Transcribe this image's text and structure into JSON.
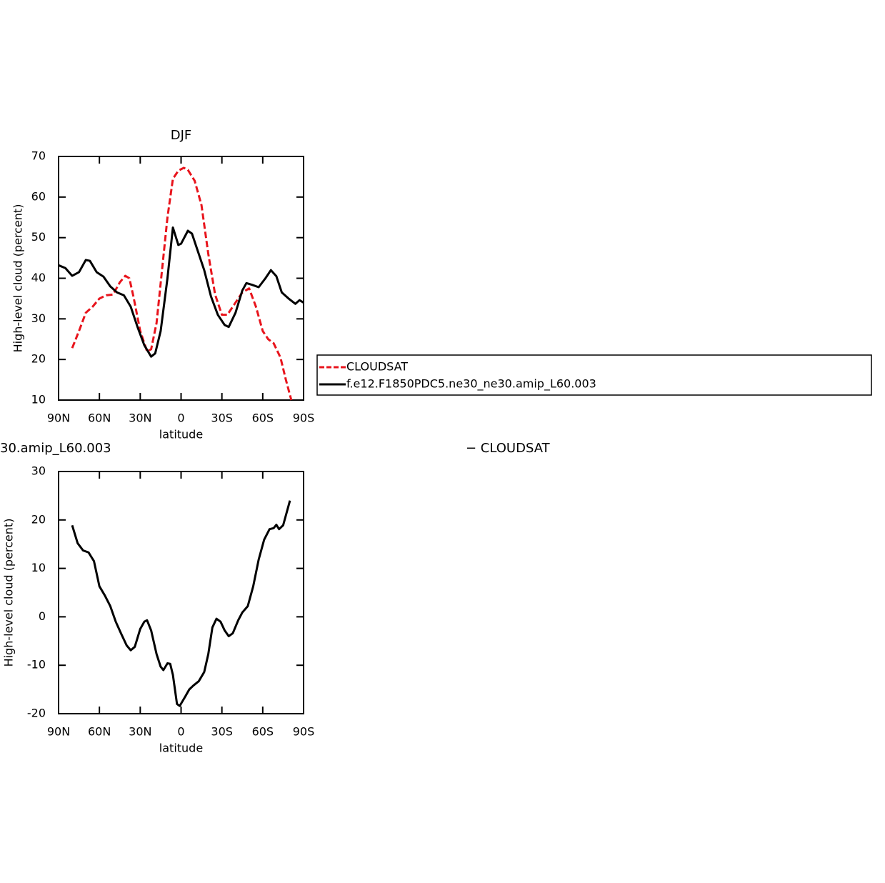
{
  "chart_data": [
    {
      "type": "line",
      "title": "DJF",
      "xlabel": "latitude",
      "ylabel": "High-level cloud (percent)",
      "xlim": [
        90,
        -90
      ],
      "xticks": [
        {
          "value": 90,
          "label": "90N"
        },
        {
          "value": 60,
          "label": "60N"
        },
        {
          "value": 30,
          "label": "30N"
        },
        0,
        {
          "value": -30,
          "label": "30S"
        },
        {
          "value": -60,
          "label": "60S"
        },
        {
          "value": -90,
          "label": "90S"
        }
      ],
      "ylim": [
        10,
        70
      ],
      "yticks": [
        10,
        20,
        30,
        40,
        50,
        60,
        70
      ],
      "legend": "right",
      "series": [
        {
          "name": "CLOUDSAT",
          "color": "#e8141c",
          "style": "dashed",
          "x": [
            80,
            75,
            70,
            65,
            60,
            55,
            50,
            45,
            41,
            38,
            35,
            30,
            25,
            22,
            18,
            14,
            10,
            6,
            2,
            -2,
            -5,
            -10,
            -15,
            -20,
            -25,
            -30,
            -34,
            -40,
            -45,
            -50,
            -55,
            -60,
            -64,
            -68,
            -73,
            -77,
            -81
          ],
          "values": [
            22.8,
            27,
            31.5,
            33,
            35,
            35.8,
            36,
            39,
            40.6,
            40,
            35.5,
            27,
            22,
            22.5,
            29,
            42,
            55,
            64.5,
            66.5,
            67.2,
            66.7,
            64,
            58,
            46,
            36,
            31,
            31,
            34,
            36.5,
            37.5,
            33,
            27,
            25,
            24,
            20.5,
            15,
            10
          ]
        },
        {
          "name": "f.e12.F1850PDC5.ne30_ne30.amip_L60.003",
          "color": "#000000",
          "style": "solid",
          "x": [
            90,
            85,
            80,
            75,
            70,
            67,
            62,
            57,
            52,
            47,
            42,
            37,
            32,
            27,
            22,
            19,
            15,
            10,
            6,
            2,
            0,
            -5,
            -8,
            -12,
            -17,
            -22,
            -27,
            -32,
            -35,
            -40,
            -45,
            -48,
            -52,
            -57,
            -62,
            -66,
            -70,
            -74,
            -79,
            -84,
            -87,
            -90
          ],
          "values": [
            43.2,
            42.5,
            40.6,
            41.5,
            44.5,
            44.3,
            41.5,
            40.4,
            38,
            36.5,
            35.8,
            33,
            28,
            23.5,
            20.7,
            21.5,
            27,
            40,
            52.5,
            48.2,
            48.5,
            51.7,
            51,
            47,
            42,
            35.5,
            31,
            28.5,
            28,
            31.5,
            37,
            38.8,
            38.4,
            37.8,
            40,
            42,
            40.5,
            36.5,
            35,
            33.7,
            34.6,
            34
          ]
        }
      ]
    },
    {
      "type": "line",
      "left_title": "30.amip_L60.003",
      "right_title": "− CLOUDSAT",
      "xlabel": "latitude",
      "ylabel": "High-level cloud (percent)",
      "xlim": [
        90,
        -90
      ],
      "xticks": [
        {
          "value": 90,
          "label": "90N"
        },
        {
          "value": 60,
          "label": "60N"
        },
        {
          "value": 30,
          "label": "30N"
        },
        0,
        {
          "value": -30,
          "label": "30S"
        },
        {
          "value": -60,
          "label": "60S"
        },
        {
          "value": -90,
          "label": "90S"
        }
      ],
      "ylim": [
        -20,
        30
      ],
      "yticks": [
        -20,
        -10,
        0,
        10,
        20,
        30
      ],
      "series": [
        {
          "color": "#000000",
          "style": "solid",
          "x": [
            80,
            76,
            72,
            68,
            64,
            60,
            56,
            52,
            48,
            44,
            40,
            37,
            34,
            30,
            27,
            25,
            22,
            18,
            15,
            13,
            10,
            8,
            6,
            3,
            1,
            -3,
            -6,
            -9,
            -13,
            -17,
            -20,
            -23,
            -26,
            -29,
            -32,
            -35,
            -38,
            -42,
            -45,
            -49,
            -53,
            -57,
            -61,
            -65,
            -68,
            -70,
            -72,
            -75,
            -80
          ],
          "values": [
            18.9,
            15.2,
            13.7,
            13.3,
            11.5,
            6.3,
            4.4,
            2.2,
            -1,
            -3.5,
            -5.9,
            -6.9,
            -6.2,
            -2.5,
            -1,
            -0.7,
            -2.8,
            -7.7,
            -10.3,
            -11,
            -9.6,
            -9.7,
            -12,
            -18,
            -18.4,
            -16.5,
            -15,
            -14.2,
            -13.3,
            -11.4,
            -7.7,
            -2.2,
            -0.4,
            -1,
            -2.8,
            -4,
            -3.4,
            -0.7,
            0.9,
            2.2,
            6.3,
            11.8,
            15.9,
            18.1,
            18.3,
            19,
            18.1,
            18.9,
            24
          ]
        }
      ]
    }
  ]
}
